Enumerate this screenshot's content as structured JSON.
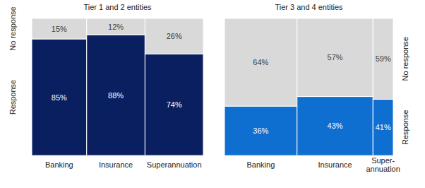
{
  "chart_data": [
    {
      "type": "bar",
      "title": "Tier 1 and 2 entities",
      "stacked": true,
      "data_labels": true,
      "tick_labels": false,
      "legend": "left",
      "categories": [
        "Banking",
        "Insurance",
        "Superannuation"
      ],
      "widths": [
        32,
        34,
        34
      ],
      "ylim": [
        0,
        100
      ],
      "series": [
        {
          "name": "Response",
          "color": "#0a1f5f",
          "values": [
            85,
            88,
            74
          ],
          "value_labels": [
            "85%",
            "88%",
            "74%"
          ]
        },
        {
          "name": "No response",
          "color": "#d9d9d9",
          "values": [
            15,
            12,
            26
          ],
          "value_labels": [
            "15%",
            "12%",
            "26%"
          ]
        }
      ]
    },
    {
      "type": "bar",
      "title": "Tier 3 and 4 entities",
      "stacked": true,
      "data_labels": true,
      "tick_labels": false,
      "legend": "right",
      "categories": [
        "Banking",
        "Insurance",
        "Super-\nannuation"
      ],
      "widths": [
        43,
        45,
        12
      ],
      "ylim": [
        0,
        100
      ],
      "series": [
        {
          "name": "Response",
          "color": "#0f6fd0",
          "values": [
            36,
            43,
            41
          ],
          "value_labels": [
            "36%",
            "43%",
            "41%"
          ]
        },
        {
          "name": "No response",
          "color": "#d9d9d9",
          "values": [
            64,
            57,
            59
          ],
          "value_labels": [
            "64%",
            "57%",
            "59%"
          ]
        }
      ]
    }
  ]
}
